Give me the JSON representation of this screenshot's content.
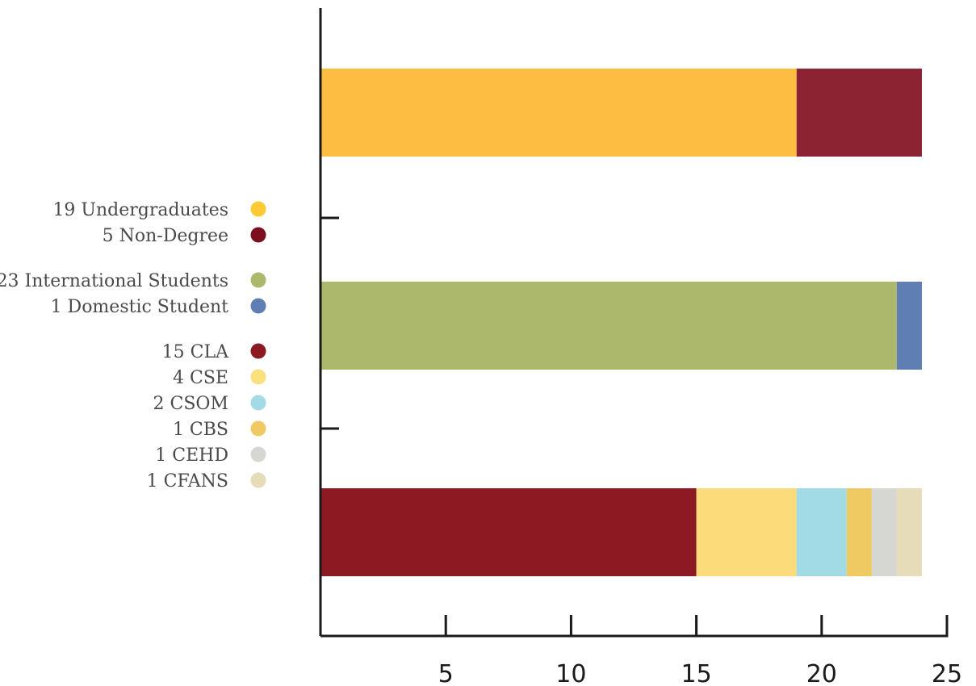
{
  "chart_data": {
    "type": "bar",
    "orientation": "horizontal",
    "stacked": true,
    "title": "",
    "xlabel": "",
    "ylabel": "",
    "xlim": [
      0,
      25
    ],
    "x_ticks": [
      5,
      10,
      15,
      20,
      25
    ],
    "grid": false,
    "legend_position": "left",
    "bars": [
      {
        "segments": [
          {
            "name": "Undergraduates",
            "label": "19 Undergraduates",
            "value": 19,
            "color": "#fdbd42"
          },
          {
            "name": "Non-Degree",
            "label": "5 Non-Degree",
            "value": 5,
            "color": "#8b2332"
          }
        ]
      },
      {
        "segments": [
          {
            "name": "International Students",
            "label": "23 International Students",
            "value": 23,
            "color": "#acb96c"
          },
          {
            "name": "Domestic Student",
            "label": "1 Domestic Student",
            "value": 1,
            "color": "#5f7eb4"
          }
        ]
      },
      {
        "segments": [
          {
            "name": "CLA",
            "label": "15 CLA",
            "value": 15,
            "color": "#8d1923"
          },
          {
            "name": "CSE",
            "label": "4 CSE",
            "value": 4,
            "color": "#fcdb7b"
          },
          {
            "name": "CSOM",
            "label": "2 CSOM",
            "value": 2,
            "color": "#a2dae6"
          },
          {
            "name": "CBS",
            "label": "1 CBS",
            "value": 1,
            "color": "#efca62"
          },
          {
            "name": "CEHD",
            "label": "1 CEHD",
            "value": 1,
            "color": "#d6d6d3"
          },
          {
            "name": "CFANS",
            "label": "1 CFANS",
            "value": 1,
            "color": "#e6dcba"
          }
        ]
      }
    ],
    "legend_dot_colors": [
      "#fdc934",
      "#7a0f1f",
      "#acb96c",
      "#5f7eb4",
      "#8d1923",
      "#fcdf7e",
      "#a2dae6",
      "#efca62",
      "#d6d6d3",
      "#e6dcba"
    ]
  }
}
